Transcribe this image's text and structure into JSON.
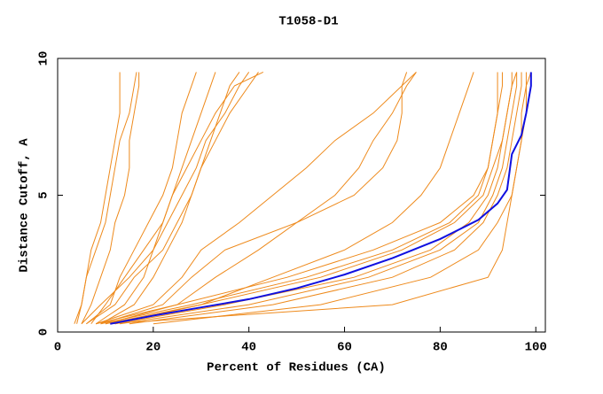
{
  "chart_data": {
    "type": "line",
    "title": "T1058-D1",
    "x_label": "Percent of Residues (CA)",
    "y_label": "Distance Cutoff, A",
    "xlim": [
      0,
      102
    ],
    "ylim": [
      0,
      10
    ],
    "xticks": [
      0,
      20,
      40,
      60,
      80,
      100
    ],
    "yticks": [
      0,
      5,
      10
    ],
    "series": [
      {
        "color": "#ee8a1c",
        "x": [
          12,
          35,
          62,
          78,
          86,
          90,
          92,
          93,
          94,
          95,
          95
        ],
        "values": [
          0.3,
          1,
          2,
          3,
          4,
          5,
          6,
          7,
          8,
          9,
          9.5
        ]
      },
      {
        "color": "#ee8a1c",
        "x": [
          10,
          30,
          55,
          72,
          83,
          89,
          91,
          93,
          94,
          95,
          96
        ],
        "values": [
          0.3,
          1,
          2,
          3,
          4,
          5,
          6,
          7,
          8,
          9,
          9.5
        ]
      },
      {
        "color": "#ee8a1c",
        "x": [
          15,
          45,
          70,
          83,
          89,
          92,
          94,
          95,
          96,
          97,
          97
        ],
        "values": [
          0.3,
          1,
          2,
          3,
          4,
          5,
          6,
          7,
          8,
          9,
          9.5
        ]
      },
      {
        "color": "#ee8a1c",
        "x": [
          20,
          55,
          78,
          88,
          92,
          95,
          96,
          97,
          97,
          98,
          98
        ],
        "values": [
          0.3,
          1,
          2,
          3,
          4,
          5,
          6,
          7,
          8,
          9,
          9.5
        ]
      },
      {
        "color": "#ee8a1c",
        "x": [
          8,
          25,
          48,
          66,
          80,
          87,
          90,
          91,
          92,
          93,
          93
        ],
        "values": [
          0.3,
          1,
          2,
          3,
          4,
          5,
          6,
          7,
          8,
          9,
          9.5
        ]
      },
      {
        "color": "#ee8a1c",
        "x": [
          11,
          70,
          90,
          93,
          94,
          95,
          96,
          97,
          98,
          98,
          99
        ],
        "values": [
          0.3,
          1,
          2,
          3,
          4,
          5,
          6,
          7,
          8,
          9,
          9.5
        ]
      },
      {
        "color": "#ee8a1c",
        "x": [
          13,
          40,
          65,
          80,
          88,
          91,
          93,
          94,
          95,
          96,
          96
        ],
        "values": [
          0.3,
          1,
          2,
          3,
          4,
          5,
          6,
          7,
          8,
          9,
          9.5
        ]
      },
      {
        "color": "#ee8a1c",
        "x": [
          9,
          28,
          52,
          70,
          82,
          88,
          90,
          91,
          92,
          92,
          92
        ],
        "values": [
          0.3,
          1,
          2,
          3,
          4,
          5,
          6,
          7,
          8,
          9,
          9.5
        ]
      },
      {
        "color": "#ee8a1c",
        "x": [
          6,
          12,
          16,
          22,
          25,
          28,
          30,
          33,
          36,
          40,
          42
        ],
        "values": [
          0.3,
          1,
          2,
          3,
          4,
          5,
          6,
          7,
          8,
          9,
          9.5
        ]
      },
      {
        "color": "#ee8a1c",
        "x": [
          7,
          10,
          14,
          18,
          22,
          24,
          26,
          28,
          30,
          32,
          33
        ],
        "values": [
          0.3,
          1,
          2,
          3,
          4,
          5,
          6,
          7,
          8,
          9,
          9.5
        ]
      },
      {
        "color": "#ee8a1c",
        "x": [
          5,
          9,
          15,
          20,
          23,
          26,
          29,
          31,
          35,
          38,
          40
        ],
        "values": [
          0.3,
          1,
          2,
          3,
          4,
          5,
          6,
          7,
          8,
          9,
          9.5
        ]
      },
      {
        "color": "#ee8a1c",
        "x": [
          8,
          14,
          18,
          20,
          22,
          24,
          27,
          30,
          33,
          37,
          43
        ],
        "values": [
          0.3,
          1,
          2,
          3,
          4,
          5,
          6,
          7,
          8,
          9,
          9.5
        ]
      },
      {
        "color": "#ee8a1c",
        "x": [
          9,
          16,
          20,
          23,
          26,
          28,
          30,
          32,
          34,
          36,
          38
        ],
        "values": [
          0.3,
          1,
          2,
          3,
          4,
          5,
          6,
          7,
          8,
          9,
          9.5
        ]
      },
      {
        "color": "#ee8a1c",
        "x": [
          6,
          11,
          13,
          16,
          19,
          22,
          24,
          25,
          26,
          28,
          29
        ],
        "values": [
          0.3,
          1,
          2,
          3,
          4,
          5,
          6,
          7,
          8,
          9,
          9.5
        ]
      },
      {
        "color": "#ee8a1c",
        "x": [
          4,
          5,
          6,
          7,
          9,
          10,
          11,
          12,
          13,
          13,
          13
        ],
        "values": [
          0.3,
          1,
          2,
          3,
          4,
          5,
          6,
          7,
          8,
          9,
          9.5
        ]
      },
      {
        "color": "#ee8a1c",
        "x": [
          5,
          7,
          9,
          11,
          12,
          14,
          15,
          15,
          16,
          17,
          17
        ],
        "values": [
          0.3,
          1,
          2,
          3,
          4,
          5,
          6,
          7,
          8,
          9,
          9.5
        ]
      },
      {
        "color": "#ee8a1c",
        "x": [
          3.5,
          5,
          6,
          8,
          10,
          11,
          12,
          13,
          15,
          16,
          16.5
        ],
        "values": [
          0.3,
          1,
          2,
          3,
          4,
          5,
          6,
          7,
          8,
          9,
          9.5
        ]
      },
      {
        "color": "#ee8a1c",
        "x": [
          10,
          25,
          33,
          42,
          50,
          58,
          63,
          66,
          70,
          73,
          75
        ],
        "values": [
          0.3,
          1,
          2,
          3,
          4,
          5,
          6,
          7,
          8,
          9,
          9.5
        ]
      },
      {
        "color": "#ee8a1c",
        "x": [
          9,
          22,
          28,
          35,
          50,
          62,
          68,
          71,
          72,
          72,
          73
        ],
        "values": [
          0.3,
          1,
          2,
          3,
          4,
          5,
          6,
          7,
          8,
          9,
          9.5
        ]
      },
      {
        "color": "#ee8a1c",
        "x": [
          12,
          30,
          45,
          60,
          70,
          76,
          80,
          82,
          84,
          86,
          87
        ],
        "values": [
          0.3,
          1,
          2,
          3,
          4,
          5,
          6,
          7,
          8,
          9,
          9.5
        ]
      },
      {
        "color": "#ee8a1c",
        "x": [
          8,
          20,
          26,
          30,
          38,
          45,
          52,
          58,
          66,
          72,
          75
        ],
        "values": [
          0.3,
          1,
          2,
          3,
          4,
          5,
          6,
          7,
          8,
          9,
          9.5
        ]
      },
      {
        "color": "#1010e0",
        "x": [
          11,
          20,
          30,
          40,
          50,
          60,
          70,
          80,
          88,
          92,
          94,
          95,
          97,
          98,
          99,
          99
        ],
        "values": [
          0.3,
          0.6,
          0.9,
          1.2,
          1.6,
          2.1,
          2.7,
          3.4,
          4.1,
          4.7,
          5.2,
          6.5,
          7.2,
          8,
          9,
          9.5
        ]
      }
    ]
  }
}
